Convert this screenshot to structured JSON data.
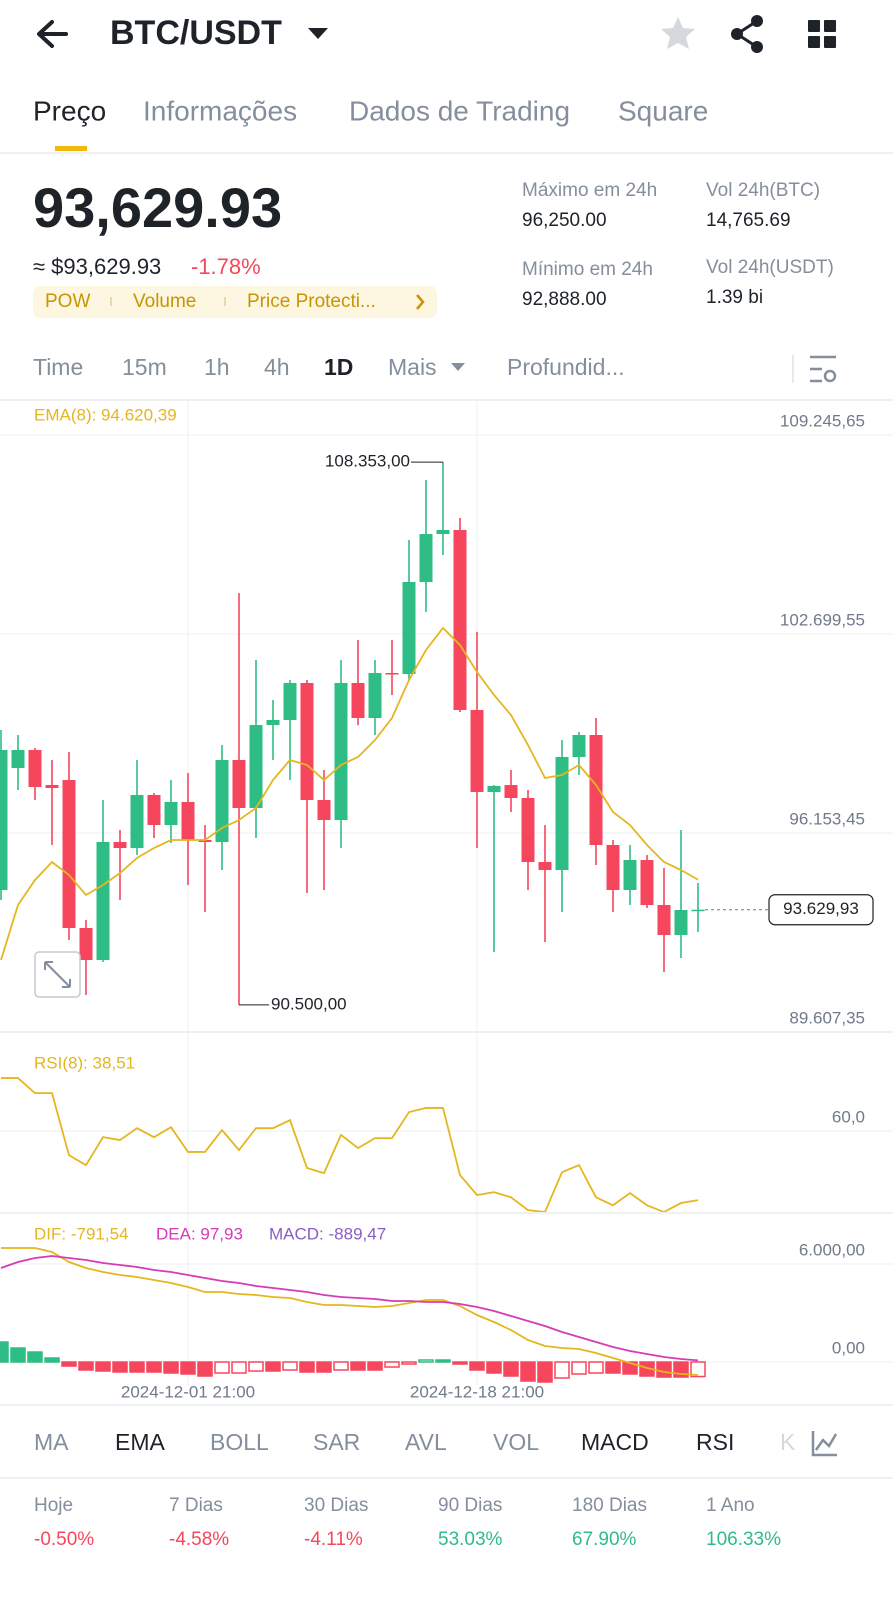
{
  "header": {
    "pair": "BTC/USDT"
  },
  "tabs": [
    "Preço",
    "Informações",
    "Dados de Trading",
    "Square"
  ],
  "price": {
    "last": "93,629.93",
    "approx": "≈ $93,629.93",
    "change": "-1.78%",
    "tags": [
      "POW",
      "Volume",
      "Price Protecti..."
    ]
  },
  "stats": [
    {
      "label": "Máximo em 24h",
      "value": "96,250.00"
    },
    {
      "label": "Vol 24h(BTC)",
      "value": "14,765.69"
    },
    {
      "label": "Mínimo em 24h",
      "value": "92,888.00"
    },
    {
      "label": "Vol 24h(USDT)",
      "value": "1.39 bi"
    }
  ],
  "intervals": [
    "Time",
    "15m",
    "1h",
    "4h",
    "1D",
    "Mais",
    "Profundid..."
  ],
  "indicators": [
    "MA",
    "EMA",
    "BOLL",
    "SAR",
    "AVL",
    "VOL",
    "MACD",
    "RSI",
    "KD"
  ],
  "performance": [
    {
      "label": "Hoje",
      "value": "-0.50%"
    },
    {
      "label": "7 Dias",
      "value": "-4.58%"
    },
    {
      "label": "30 Dias",
      "value": "-4.11%"
    },
    {
      "label": "90 Dias",
      "value": "53.03%"
    },
    {
      "label": "180 Dias",
      "value": "67.90%"
    },
    {
      "label": "1 Ano",
      "value": "106.33%"
    }
  ],
  "chart_data": [
    {
      "type": "candlestick",
      "categories": [
        null,
        null,
        null,
        null,
        null,
        null,
        null,
        null,
        null,
        null,
        null,
        "2024-12-01 21:00",
        null,
        null,
        null,
        null,
        null,
        null,
        null,
        null,
        null,
        null,
        null,
        null,
        null,
        null,
        null,
        null,
        "2024-12-18 21:00",
        null,
        null,
        null,
        null,
        null,
        null,
        null,
        null,
        null,
        null,
        null,
        null,
        null
      ],
      "open": [
        94278,
        98292,
        98884,
        97732,
        97897,
        93028,
        91976,
        95857,
        95660,
        97404,
        96417,
        97173,
        95923,
        95857,
        98555,
        96976,
        99706,
        99871,
        101088,
        97239,
        96581,
        101088,
        99936,
        101417,
        101384,
        104410,
        105989,
        106121,
        100200,
        97502,
        97732,
        97305,
        95200,
        94936,
        98654,
        99377,
        95759,
        94278,
        95265,
        93785,
        92798,
        93620
      ],
      "high": [
        99542,
        99377,
        98950,
        98555,
        98818,
        93292,
        97239,
        96252,
        98555,
        97469,
        97897,
        98127,
        96417,
        99048,
        104048,
        101844,
        100529,
        101186,
        101186,
        98226,
        101844,
        102502,
        101844,
        102502,
        105792,
        107765,
        108353,
        106515,
        102765,
        97732,
        98226,
        97568,
        96417,
        99213,
        99476,
        99936,
        95923,
        95759,
        95430,
        95002,
        96252,
        94509
      ],
      "low": [
        93950,
        97568,
        97239,
        95759,
        92634,
        90825,
        91910,
        93950,
        95430,
        95989,
        95825,
        94443,
        93555,
        94936,
        90500,
        95989,
        98555,
        97897,
        94180,
        94278,
        95660,
        99700,
        99377,
        100693,
        101186,
        103423,
        105298,
        100134,
        95660,
        92239,
        96844,
        94278,
        92568,
        93555,
        98061,
        95101,
        93555,
        93785,
        93686,
        91581,
        92042,
        92897
      ],
      "close": [
        98884,
        98884,
        97667,
        97634,
        93028,
        91976,
        95857,
        95660,
        97404,
        96417,
        97173,
        95923,
        95857,
        98555,
        96976,
        99706,
        99871,
        101088,
        97239,
        96581,
        101088,
        99936,
        101417,
        101384,
        104410,
        105989,
        106121,
        100200,
        97502,
        97700,
        97305,
        95200,
        94936,
        98654,
        99377,
        95759,
        94278,
        95265,
        93785,
        92798,
        93620,
        93629.93
      ],
      "up_color": "#2ebd85",
      "down_color": "#f6465d",
      "ema": {
        "name": "EMA(8): 94.620,39",
        "color": "#e6b61e",
        "values": [
          91976,
          93785,
          94608,
          95200,
          94772,
          94114,
          94443,
          94838,
          95331,
          95660,
          95923,
          95923,
          95923,
          96318,
          96581,
          96976,
          97897,
          98555,
          98390,
          97897,
          98390,
          98654,
          99213,
          99936,
          101186,
          102173,
          102897,
          102338,
          101450,
          100693,
          100035,
          99048,
          97963,
          98061,
          98390,
          97732,
          96844,
          96417,
          95759,
          95200,
          94936,
          94620.39
        ]
      },
      "last_price": {
        "value": 93629.93,
        "label": "93.629,93"
      },
      "annotations": [
        {
          "value": 108353,
          "label": "108.353,00"
        },
        {
          "value": 90500,
          "label": "90.500,00"
        }
      ],
      "ylim": [
        89607.35,
        110397
      ],
      "yticks": [
        {
          "value": 109245.65,
          "label": "109.245,65"
        },
        {
          "value": 102699.55,
          "label": "102.699,55"
        },
        {
          "value": 96153.45,
          "label": "96.153,45"
        },
        {
          "value": 89607.35,
          "label": "89.607,35"
        }
      ],
      "grid": true
    },
    {
      "type": "line",
      "series": [
        {
          "name": "RSI(8): 38,51",
          "color": "#e6b61e",
          "values": [
            76.5,
            76.5,
            71.8,
            71.8,
            52.5,
            49.4,
            58.1,
            57.2,
            60.9,
            58.1,
            61.2,
            53.5,
            53.5,
            60.3,
            54.1,
            60.9,
            60.9,
            63.4,
            48.5,
            46.9,
            58.8,
            54.7,
            57.8,
            57.8,
            65.9,
            67.2,
            67.2,
            46.3,
            40.1,
            41.0,
            39.4,
            35.4,
            34.8,
            47.2,
            49.4,
            39.4,
            36.9,
            40.7,
            36.9,
            34.8,
            37.6,
            38.51
          ]
        }
      ],
      "ylim": [
        34.5,
        89.9
      ],
      "yticks": [
        {
          "value": 60,
          "label": "60,0"
        }
      ],
      "grid": true
    },
    {
      "type": "macd",
      "series": [
        {
          "name": "DIF: -791,54",
          "color": "#e6b61e",
          "values": [
            6979,
            6979,
            6979,
            6734,
            6122,
            5755,
            5510,
            5326,
            5204,
            5020,
            4836,
            4592,
            4285,
            4285,
            4163,
            4102,
            3979,
            3918,
            3673,
            3490,
            3490,
            3428,
            3367,
            3428,
            3612,
            3796,
            3796,
            3428,
            2877,
            2449,
            1959,
            1347,
            980,
            857,
            796,
            551,
            245,
            -61,
            -367,
            -612,
            -735,
            -791.54
          ]
        },
        {
          "name": "DEA: 97,93",
          "color": "#d63bb8",
          "values": [
            5755,
            6122,
            6367,
            6489,
            6367,
            6244,
            6061,
            5938,
            5816,
            5632,
            5510,
            5326,
            5142,
            4959,
            4836,
            4653,
            4530,
            4408,
            4285,
            4102,
            3979,
            3918,
            3857,
            3734,
            3734,
            3673,
            3673,
            3551,
            3367,
            3122,
            2816,
            2510,
            2204,
            1837,
            1531,
            1224,
            918,
            673,
            490,
            306,
            184,
            97.93
          ]
        }
      ],
      "bars": {
        "name": "MACD: -889,47",
        "color": "#8a5cc7",
        "values": [
          1224,
          857,
          612,
          245,
          -245,
          -489,
          -551,
          -612,
          -612,
          -612,
          -674,
          -734,
          -857,
          -674,
          -673,
          -551,
          -551,
          -490,
          -612,
          -612,
          -489,
          -490,
          -490,
          -306,
          -122,
          123,
          123,
          -123,
          -490,
          -673,
          -857,
          -1163,
          -1224,
          -980,
          -735,
          -673,
          -673,
          -734,
          -857,
          -918,
          -919,
          -889.47
        ]
      },
      "up_color": "#2ebd85",
      "down_color": "#f6465d",
      "ylim": [
        -1408,
        9000
      ],
      "yticks": [
        {
          "value": 6000,
          "label": "6.000,00"
        },
        {
          "value": 0,
          "label": "0,00"
        }
      ],
      "grid": true
    }
  ]
}
